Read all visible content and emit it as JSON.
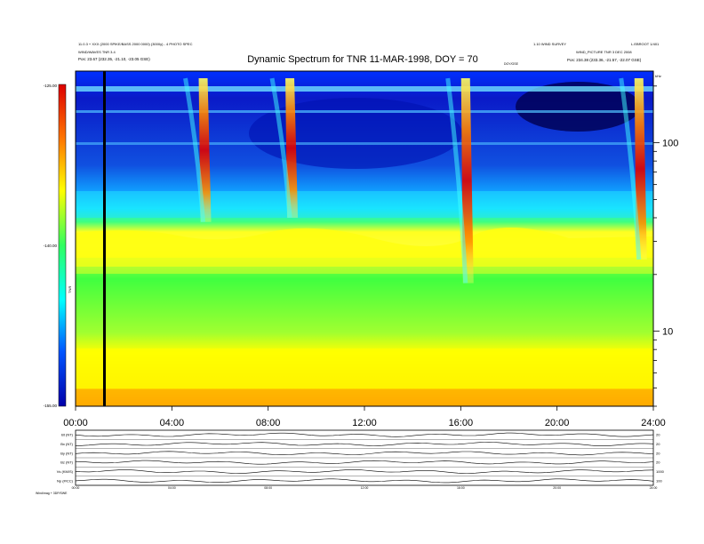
{
  "header": {
    "left_line1": "11.0.3 + XXX (2000 SPIKE/BASS 2000 0000) (3000y) - 4 PHOTO SPEC",
    "left_line2": "WIND/WAVES TNR 3.4",
    "left_line3": "Pos:   23.67 (232.35, -21.10, -23.05 GSE)",
    "right_line1": "1.10 WIND SURVEY",
    "right_line2": "L.EBROOT 1/401",
    "right_line3": "WIND_PICTURE TNR 3 DEC 2008",
    "right_line4": "Pos:   234.38 (233.36, -21.57, -22.07 GSE)",
    "mid_small": "DOY/GSE"
  },
  "chart_data": {
    "type": "heatmap",
    "title": "Dynamic Spectrum for TNR 11-MAR-1998, DOY = 70",
    "xlabel": "",
    "ylabel": "",
    "x_ticks": [
      "00:00",
      "04:00",
      "08:00",
      "12:00",
      "16:00",
      "20:00",
      "24:00"
    ],
    "x_range_hours": [
      0,
      24
    ],
    "y_axis_right": {
      "unit": "kHz",
      "scale": "log",
      "range": [
        4,
        240
      ],
      "ticks": [
        10,
        100
      ]
    },
    "colorbar": {
      "label": "TNR",
      "ticks": [
        "-125.00",
        "-140.00",
        "-155.00"
      ],
      "range": [
        -155,
        -125
      ],
      "colors": [
        "#0000aa",
        "#0055ff",
        "#00ffff",
        "#30ff60",
        "#ffff00",
        "#ff7700",
        "#dd0000"
      ]
    },
    "cursor_time_hours": 1.2,
    "radio_bursts": [
      {
        "time_h": 5.3,
        "freq_top_khz": 220,
        "freq_bottom_khz": 38
      },
      {
        "time_h": 8.9,
        "freq_top_khz": 220,
        "freq_bottom_khz": 40
      },
      {
        "time_h": 16.2,
        "freq_top_khz": 220,
        "freq_bottom_khz": 18
      },
      {
        "time_h": 23.4,
        "freq_top_khz": 220,
        "freq_bottom_khz": 24
      }
    ],
    "plasma_line_khz": 25
  },
  "mag_panel": {
    "rows": [
      {
        "label": "Bt (NT)",
        "scale": "20"
      },
      {
        "label": "Bx (NT)",
        "scale": "20"
      },
      {
        "label": "By (NT)",
        "scale": "20"
      },
      {
        "label": "Bz (NT)",
        "scale": "20"
      },
      {
        "label": "Vs (KM/S)",
        "scale": "1000"
      },
      {
        "label": "Np (#/CC)",
        "scale": "100"
      }
    ],
    "x_ticks": [
      "00:00",
      "04:00",
      "08:00",
      "12:00",
      "16:00",
      "20:00",
      "24:00"
    ],
    "footer": "Wind/mag + 3DP/SWE"
  }
}
